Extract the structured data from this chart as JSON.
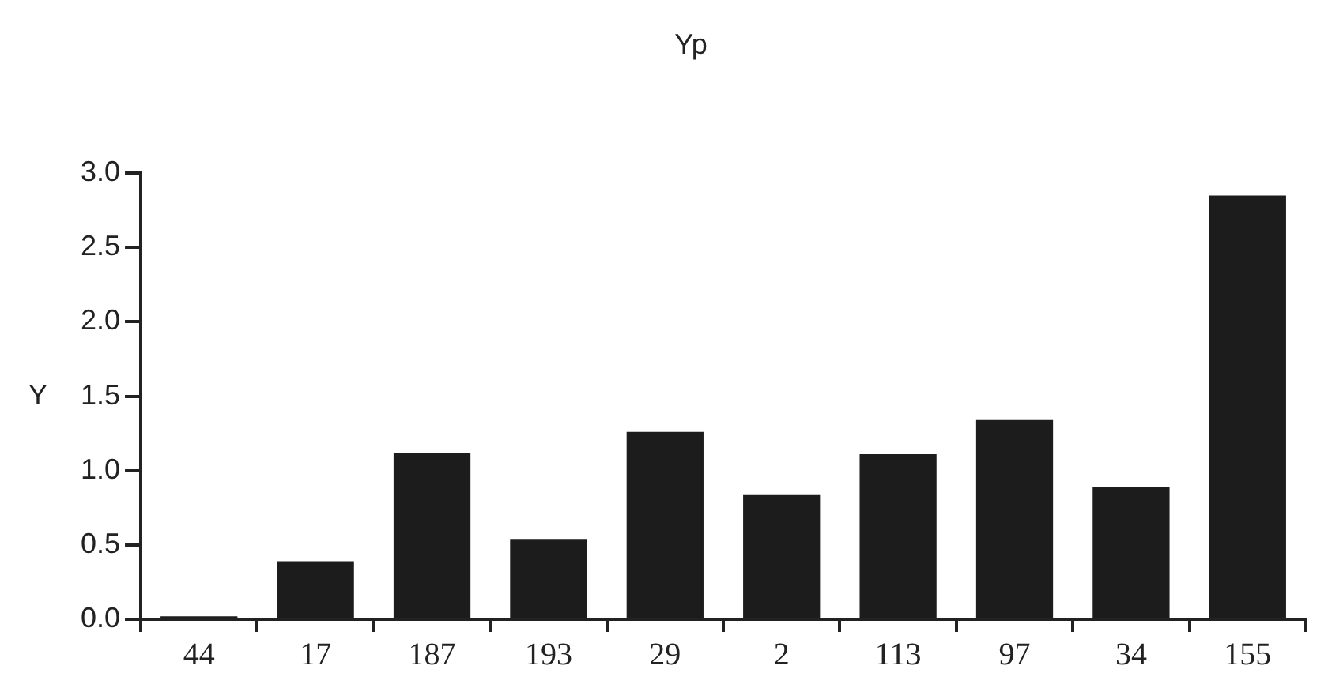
{
  "chart_data": {
    "type": "bar",
    "title": "Yp",
    "ylabel": "Y",
    "categories": [
      "44",
      "17",
      "187",
      "193",
      "29",
      "2",
      "113",
      "97",
      "34",
      "155"
    ],
    "values": [
      0.02,
      0.39,
      1.12,
      0.54,
      1.26,
      0.84,
      1.11,
      1.34,
      0.89,
      2.85
    ],
    "color": "#1c1c1c",
    "ylim": [
      0,
      3
    ],
    "yticks": [
      {
        "value": 0,
        "label": "0.0"
      },
      0.5,
      {
        "value": 1,
        "label": "1.0"
      },
      1.5,
      {
        "value": 2,
        "label": "2.0"
      },
      2.5,
      {
        "value": 3,
        "label": "3.0"
      }
    ]
  }
}
